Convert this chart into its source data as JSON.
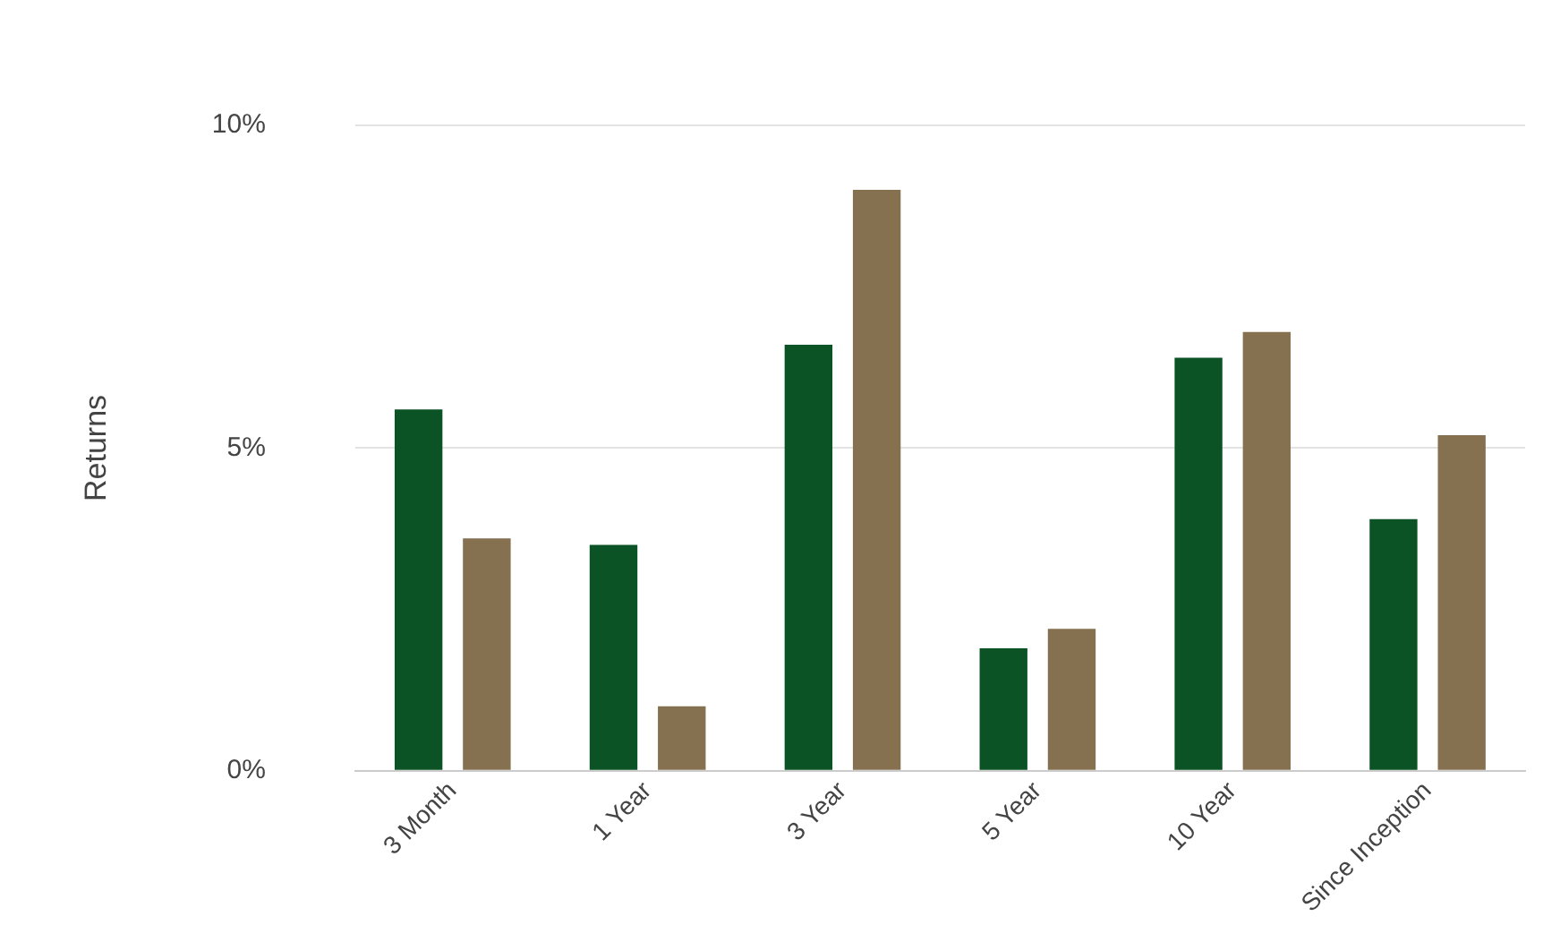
{
  "chart_data": {
    "type": "bar",
    "ylabel": "Returns",
    "categories": [
      "3 Month",
      "1 Year",
      "3 Year",
      "5 Year",
      "10 Year",
      "Since Inception"
    ],
    "series": [
      {
        "color": "#0b5325",
        "values": [
          5.6,
          3.5,
          6.6,
          1.9,
          6.4,
          3.9
        ]
      },
      {
        "color": "#857050",
        "values": [
          3.6,
          1.0,
          9.0,
          2.2,
          6.8,
          5.2
        ]
      }
    ],
    "ylim": [
      0,
      10
    ],
    "yticks": [
      {
        "value": 0,
        "label": "0%"
      },
      {
        "value": 5,
        "label": "5%"
      },
      {
        "value": 10,
        "label": "10%"
      }
    ],
    "grid": "y"
  }
}
